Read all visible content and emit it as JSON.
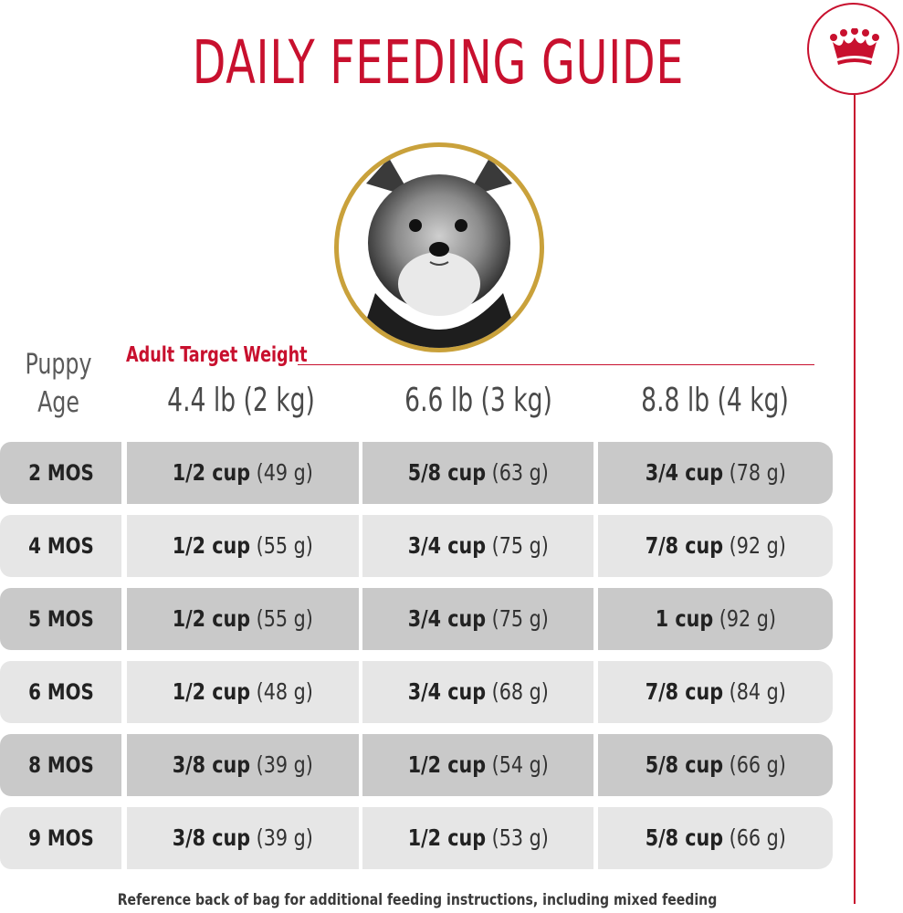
{
  "title": "DAILY FEEDING GUIDE",
  "header": {
    "age_label_line1": "Puppy",
    "age_label_line2": "Age",
    "target_label": "Adult Target Weight",
    "weights": [
      "4.4 lb (2 kg)",
      "6.6 lb (3 kg)",
      "8.8 lb (4 kg)"
    ]
  },
  "rows": [
    {
      "age": "2 MOS",
      "portions": [
        {
          "cup": "1/2 cup",
          "grams": "(49 g)"
        },
        {
          "cup": "5/8 cup",
          "grams": "(63 g)"
        },
        {
          "cup": "3/4 cup",
          "grams": "(78 g)"
        }
      ]
    },
    {
      "age": "4 MOS",
      "portions": [
        {
          "cup": "1/2 cup",
          "grams": "(55 g)"
        },
        {
          "cup": "3/4 cup",
          "grams": "(75 g)"
        },
        {
          "cup": "7/8 cup",
          "grams": "(92 g)"
        }
      ]
    },
    {
      "age": "5 MOS",
      "portions": [
        {
          "cup": "1/2 cup",
          "grams": "(55 g)"
        },
        {
          "cup": "3/4 cup",
          "grams": "(75 g)"
        },
        {
          "cup": "1 cup",
          "grams": "(92 g)"
        }
      ]
    },
    {
      "age": "6 MOS",
      "portions": [
        {
          "cup": "1/2 cup",
          "grams": "(48 g)"
        },
        {
          "cup": "3/4 cup",
          "grams": "(68 g)"
        },
        {
          "cup": "7/8 cup",
          "grams": "(84 g)"
        }
      ]
    },
    {
      "age": "8 MOS",
      "portions": [
        {
          "cup": "3/8 cup",
          "grams": "(39 g)"
        },
        {
          "cup": "1/2 cup",
          "grams": "(54 g)"
        },
        {
          "cup": "5/8 cup",
          "grams": "(66 g)"
        }
      ]
    },
    {
      "age": "9 MOS",
      "portions": [
        {
          "cup": "3/8 cup",
          "grams": "(39 g)"
        },
        {
          "cup": "1/2 cup",
          "grams": "(53 g)"
        },
        {
          "cup": "5/8 cup",
          "grams": "(66 g)"
        }
      ]
    }
  ],
  "footer": "Reference back of bag for additional feeding instructions, including mixed feeding",
  "colors": {
    "brand_red": "#c8102e",
    "gold": "#c9a13b",
    "row_dark": "#c9c9c9",
    "row_light": "#e6e6e6"
  },
  "icons": {
    "logo": "crown-icon",
    "photo": "puppy-photo"
  }
}
